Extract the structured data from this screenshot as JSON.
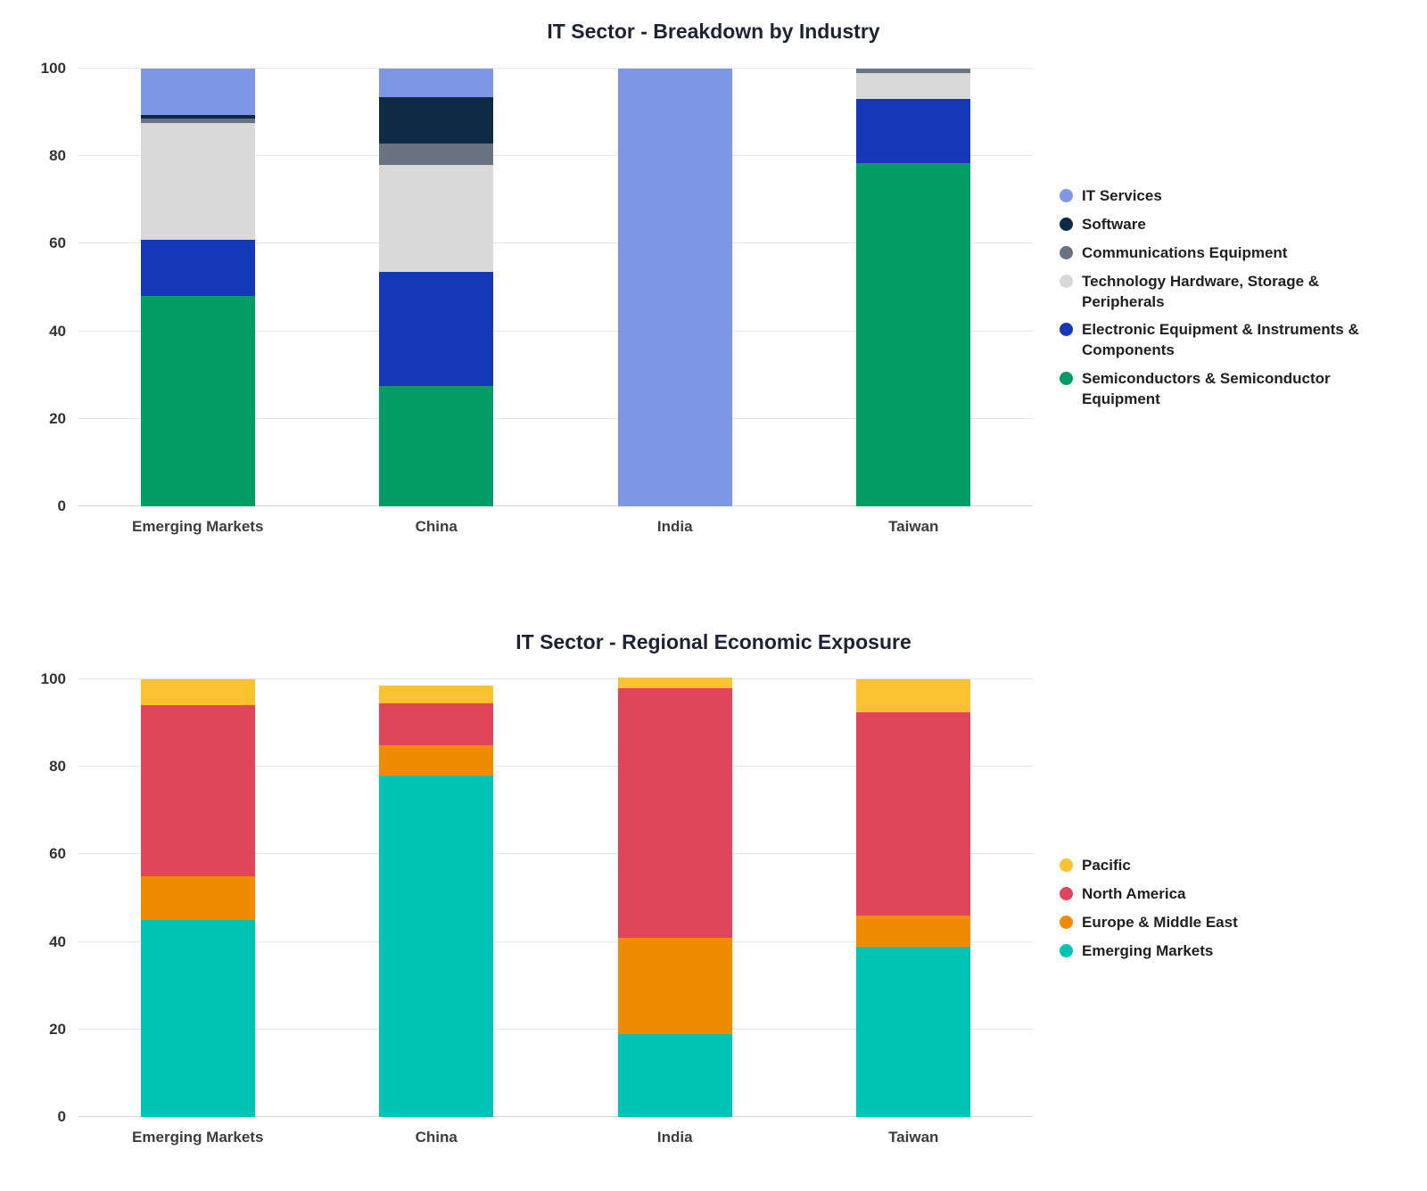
{
  "page": {
    "background": "#ffffff"
  },
  "chart_data": [
    {
      "type": "bar",
      "stacked": true,
      "title": "IT Sector - Breakdown by Industry",
      "categories": [
        "Emerging Markets",
        "China",
        "India",
        "Taiwan"
      ],
      "xlabel": "",
      "ylabel": "",
      "ylim": [
        0,
        100
      ],
      "yticks": [
        0,
        20,
        40,
        60,
        80,
        100
      ],
      "grid": true,
      "legend_position": "right",
      "series": [
        {
          "name": "IT Services",
          "color": "#7d96e6",
          "values": [
            10.5,
            6.5,
            100,
            0
          ]
        },
        {
          "name": "Software",
          "color": "#0e2a45",
          "values": [
            1,
            10.5,
            0,
            0
          ]
        },
        {
          "name": "Communications Equipment",
          "color": "#6a7380",
          "values": [
            1,
            5,
            0,
            1
          ]
        },
        {
          "name": "Technology Hardware, Storage & Peripherals",
          "color": "#d9d9d9",
          "values": [
            26.5,
            24.5,
            0,
            6
          ]
        },
        {
          "name": "Electronic Equipment & Instruments & Components",
          "color": "#1438b8",
          "values": [
            13,
            26,
            0,
            14.5
          ]
        },
        {
          "name": "Semiconductors & Semiconductor Equipment",
          "color": "#049b66",
          "values": [
            48,
            27.5,
            0,
            78.5
          ]
        }
      ]
    },
    {
      "type": "bar",
      "stacked": true,
      "title": "IT Sector - Regional Economic Exposure",
      "categories": [
        "Emerging Markets",
        "China",
        "India",
        "Taiwan"
      ],
      "xlabel": "",
      "ylabel": "",
      "ylim": [
        0,
        100
      ],
      "yticks": [
        0,
        20,
        40,
        60,
        80,
        100
      ],
      "grid": true,
      "legend_position": "right",
      "series": [
        {
          "name": "Pacific",
          "color": "#fcc22f",
          "values": [
            6,
            4,
            2.5,
            7.5
          ]
        },
        {
          "name": "North America",
          "color": "#e0455c",
          "values": [
            39,
            9.5,
            57,
            46.5
          ]
        },
        {
          "name": "Europe & Middle East",
          "color": "#f08b00",
          "values": [
            10,
            7,
            22,
            7
          ]
        },
        {
          "name": "Emerging Markets",
          "color": "#00c4b3",
          "values": [
            45,
            78,
            19,
            39
          ]
        }
      ]
    }
  ]
}
